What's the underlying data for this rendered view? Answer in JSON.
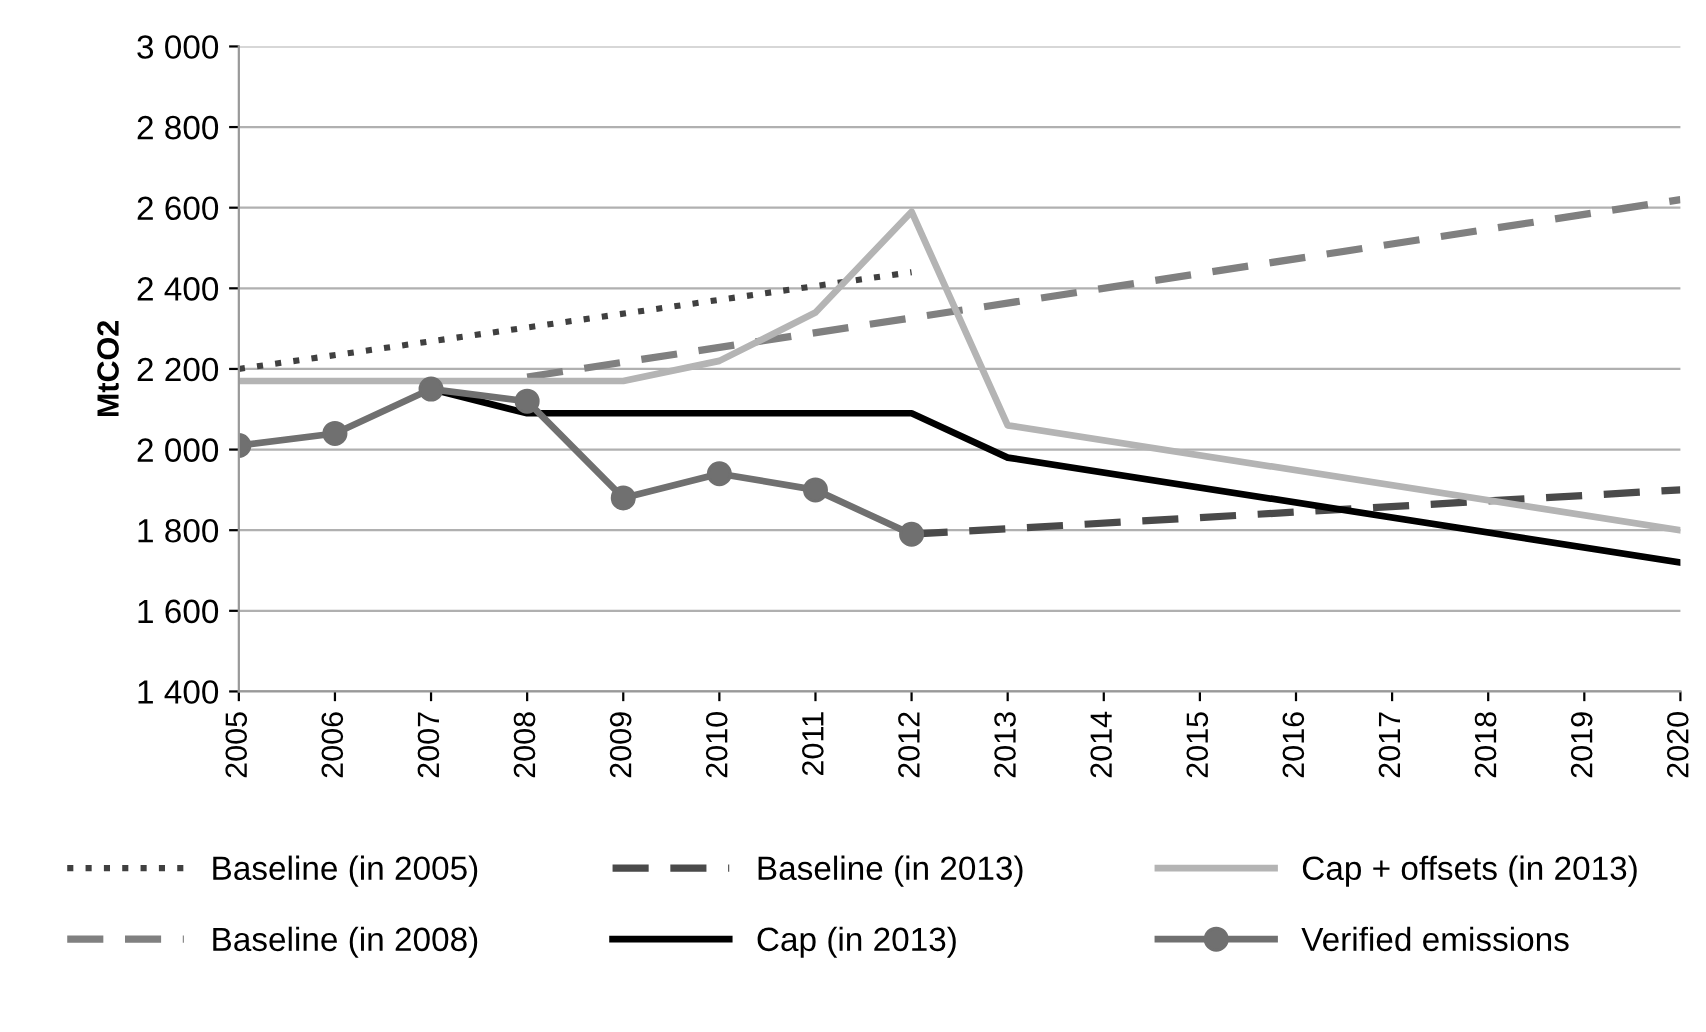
{
  "chart_data": {
    "type": "line",
    "ylabel": "MtCO2",
    "xlim": [
      2005,
      2020
    ],
    "xticks": [
      2005,
      2006,
      2007,
      2008,
      2009,
      2010,
      2011,
      2012,
      2013,
      2014,
      2015,
      2016,
      2017,
      2018,
      2019,
      2020
    ],
    "ylim": [
      1400,
      3000
    ],
    "yticks": [
      {
        "value": 1400,
        "label": "1 400"
      },
      {
        "value": 1600,
        "label": "1 600"
      },
      {
        "value": 1800,
        "label": "1 800"
      },
      {
        "value": 2000,
        "label": "2 000"
      },
      {
        "value": 2200,
        "label": "2 200"
      },
      {
        "value": 2400,
        "label": "2 400"
      },
      {
        "value": 2600,
        "label": "2 600"
      },
      {
        "value": 2800,
        "label": "2 800"
      },
      {
        "value": 3000,
        "label": "3 000"
      }
    ],
    "grid": "y",
    "legend": "bottom",
    "series": [
      {
        "name": "Baseline (in 2005)",
        "color": "#404040",
        "line_style": "dotted",
        "marker": "none",
        "x": [
          2005,
          2012
        ],
        "values": [
          2200,
          2440
        ]
      },
      {
        "name": "Baseline (in 2008)",
        "color": "#808080",
        "line_style": "dashed",
        "marker": "none",
        "x": [
          2008,
          2020
        ],
        "values": [
          2180,
          2620
        ]
      },
      {
        "name": "Baseline (in 2013)",
        "color": "#4a4a4a",
        "line_style": "dashed",
        "marker": "none",
        "x": [
          2012,
          2020
        ],
        "values": [
          1790,
          1900
        ]
      },
      {
        "name": "Cap (in 2013)",
        "color": "#000000",
        "line_style": "solid",
        "marker": "none",
        "x": [
          2007,
          2008,
          2012,
          2013,
          2020
        ],
        "values": [
          2150,
          2090,
          2090,
          1980,
          1720
        ]
      },
      {
        "name": "Cap + offsets (in 2013)",
        "color": "#b4b4b4",
        "line_style": "solid",
        "marker": "none",
        "x": [
          2005,
          2009,
          2010,
          2011,
          2012,
          2013,
          2020
        ],
        "values": [
          2170,
          2170,
          2220,
          2340,
          2590,
          2060,
          1800
        ]
      },
      {
        "name": "Verified emissions",
        "color": "#707070",
        "line_style": "solid",
        "marker": "circle",
        "x": [
          2005,
          2006,
          2007,
          2008,
          2009,
          2010,
          2011,
          2012
        ],
        "values": [
          2010,
          2040,
          2150,
          2120,
          1880,
          1940,
          1900,
          1790
        ]
      }
    ]
  }
}
